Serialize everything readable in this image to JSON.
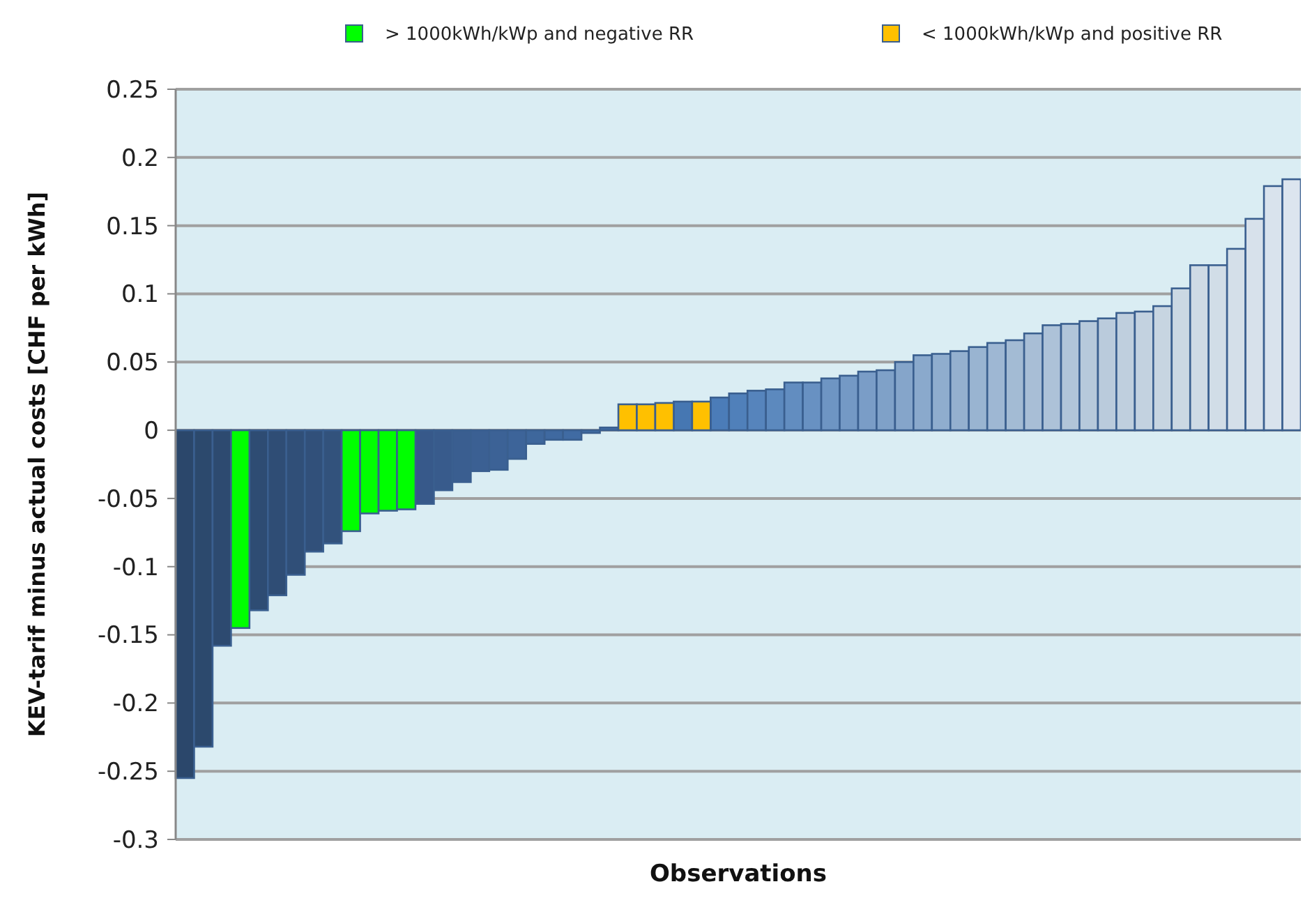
{
  "chart_data": {
    "type": "bar",
    "xlabel": "Observations",
    "ylabel": "KEV-tarif minus actual costs [CHF per kWh]",
    "categories": [
      null,
      null,
      null,
      null,
      null,
      null,
      null,
      null,
      null,
      null,
      null,
      null,
      null,
      null,
      null,
      null,
      null,
      null,
      null,
      null,
      null,
      null,
      null,
      null,
      null,
      null,
      null,
      null,
      null,
      null,
      null,
      null,
      null,
      null,
      null,
      null,
      null,
      null,
      null,
      null,
      null,
      null,
      null,
      null,
      null,
      null,
      null,
      null,
      null,
      null,
      null,
      null,
      null,
      null,
      null,
      null,
      null,
      null,
      null,
      null,
      null
    ],
    "series": [
      {
        "values": [
          -0.255,
          -0.232,
          -0.158,
          null,
          -0.132,
          -0.121,
          -0.106,
          -0.089,
          -0.083,
          null,
          null,
          null,
          null,
          -0.054,
          -0.044,
          -0.038,
          -0.03,
          -0.029,
          -0.021,
          -0.01,
          -0.007,
          -0.007,
          -0.002,
          0.002,
          null,
          null,
          null,
          0.021,
          null,
          0.024,
          0.027,
          0.029,
          0.03,
          0.035,
          0.035,
          0.038,
          0.04,
          0.043,
          0.044,
          0.05,
          0.055,
          0.056,
          0.058,
          0.061,
          0.064,
          0.066,
          0.071,
          0.077,
          0.078,
          0.08,
          0.082,
          0.086,
          0.087,
          0.091,
          0.104,
          0.121,
          0.121,
          0.133,
          0.155,
          0.179,
          0.184
        ],
        "colors": [
          "#2b476b",
          "#2c496d",
          "#2d4a70",
          null,
          "#2e4c73",
          "#2f4d75",
          "#304f78",
          "#31507a",
          "#32527c",
          null,
          null,
          null,
          null,
          "#37598a",
          "#385b8c",
          "#3a5e90",
          "#3b6093",
          "#3c6296",
          "#3d6499",
          "#3e679c",
          "#3f69a0",
          "#406ba3",
          "#416ea6",
          "#4270aa",
          null,
          null,
          null,
          "#4677b2",
          null,
          "#4b7cb8",
          "#5080ba",
          "#5684bc",
          "#5c89be",
          "#628dc0",
          "#6891c2",
          "#6e95c3",
          "#7499c5",
          "#7a9dc7",
          "#7fa1c8",
          "#85a5ca",
          "#8aa9cc",
          "#8fadce",
          "#94b0cf",
          "#99b4d1",
          "#9eb7d3",
          "#a3bbd4",
          "#a8bed6",
          "#adc2d8",
          "#b1c5d9",
          "#b6c9db",
          "#bacbdc",
          "#bfcfde",
          "#c3d2e0",
          "#c7d5e1",
          "#cbd8e3",
          "#cedae5",
          "#d1dde7",
          "#d4dfe9",
          "#d7e1eb",
          "#d9e3ed",
          "#dce5ef"
        ]
      },
      {
        "name": "> 1000kWh/kWp and negative RR",
        "color": "#00ff00",
        "values": [
          null,
          null,
          null,
          -0.145,
          null,
          null,
          null,
          null,
          null,
          -0.074,
          -0.061,
          -0.059,
          -0.058,
          null,
          null,
          null,
          null,
          null,
          null,
          null,
          null,
          null,
          null,
          null,
          null,
          null,
          null,
          null,
          null,
          null,
          null,
          null,
          null,
          null,
          null,
          null,
          null,
          null,
          null,
          null,
          null,
          null,
          null,
          null,
          null,
          null,
          null,
          null,
          null,
          null,
          null,
          null,
          null,
          null,
          null,
          null,
          null,
          null,
          null,
          null,
          null
        ]
      },
      {
        "name": "< 1000kWh/kWp and positive RR",
        "color": "#ffc000",
        "values": [
          null,
          null,
          null,
          null,
          null,
          null,
          null,
          null,
          null,
          null,
          null,
          null,
          null,
          null,
          null,
          null,
          null,
          null,
          null,
          null,
          null,
          null,
          null,
          null,
          0.019,
          0.019,
          0.02,
          null,
          0.021,
          null,
          null,
          null,
          null,
          null,
          null,
          null,
          null,
          null,
          null,
          null,
          null,
          null,
          null,
          null,
          null,
          null,
          null,
          null,
          null,
          null,
          null,
          null,
          null,
          null,
          null,
          null,
          null,
          null,
          null,
          null,
          null
        ]
      }
    ],
    "ylim": [
      -0.3,
      0.25
    ],
    "yticks": [
      -0.3,
      -0.25,
      -0.2,
      -0.15,
      -0.1,
      -0.05,
      0,
      0.05,
      0.1,
      0.15,
      0.2,
      0.25
    ],
    "grid": "y",
    "legend": "top"
  }
}
